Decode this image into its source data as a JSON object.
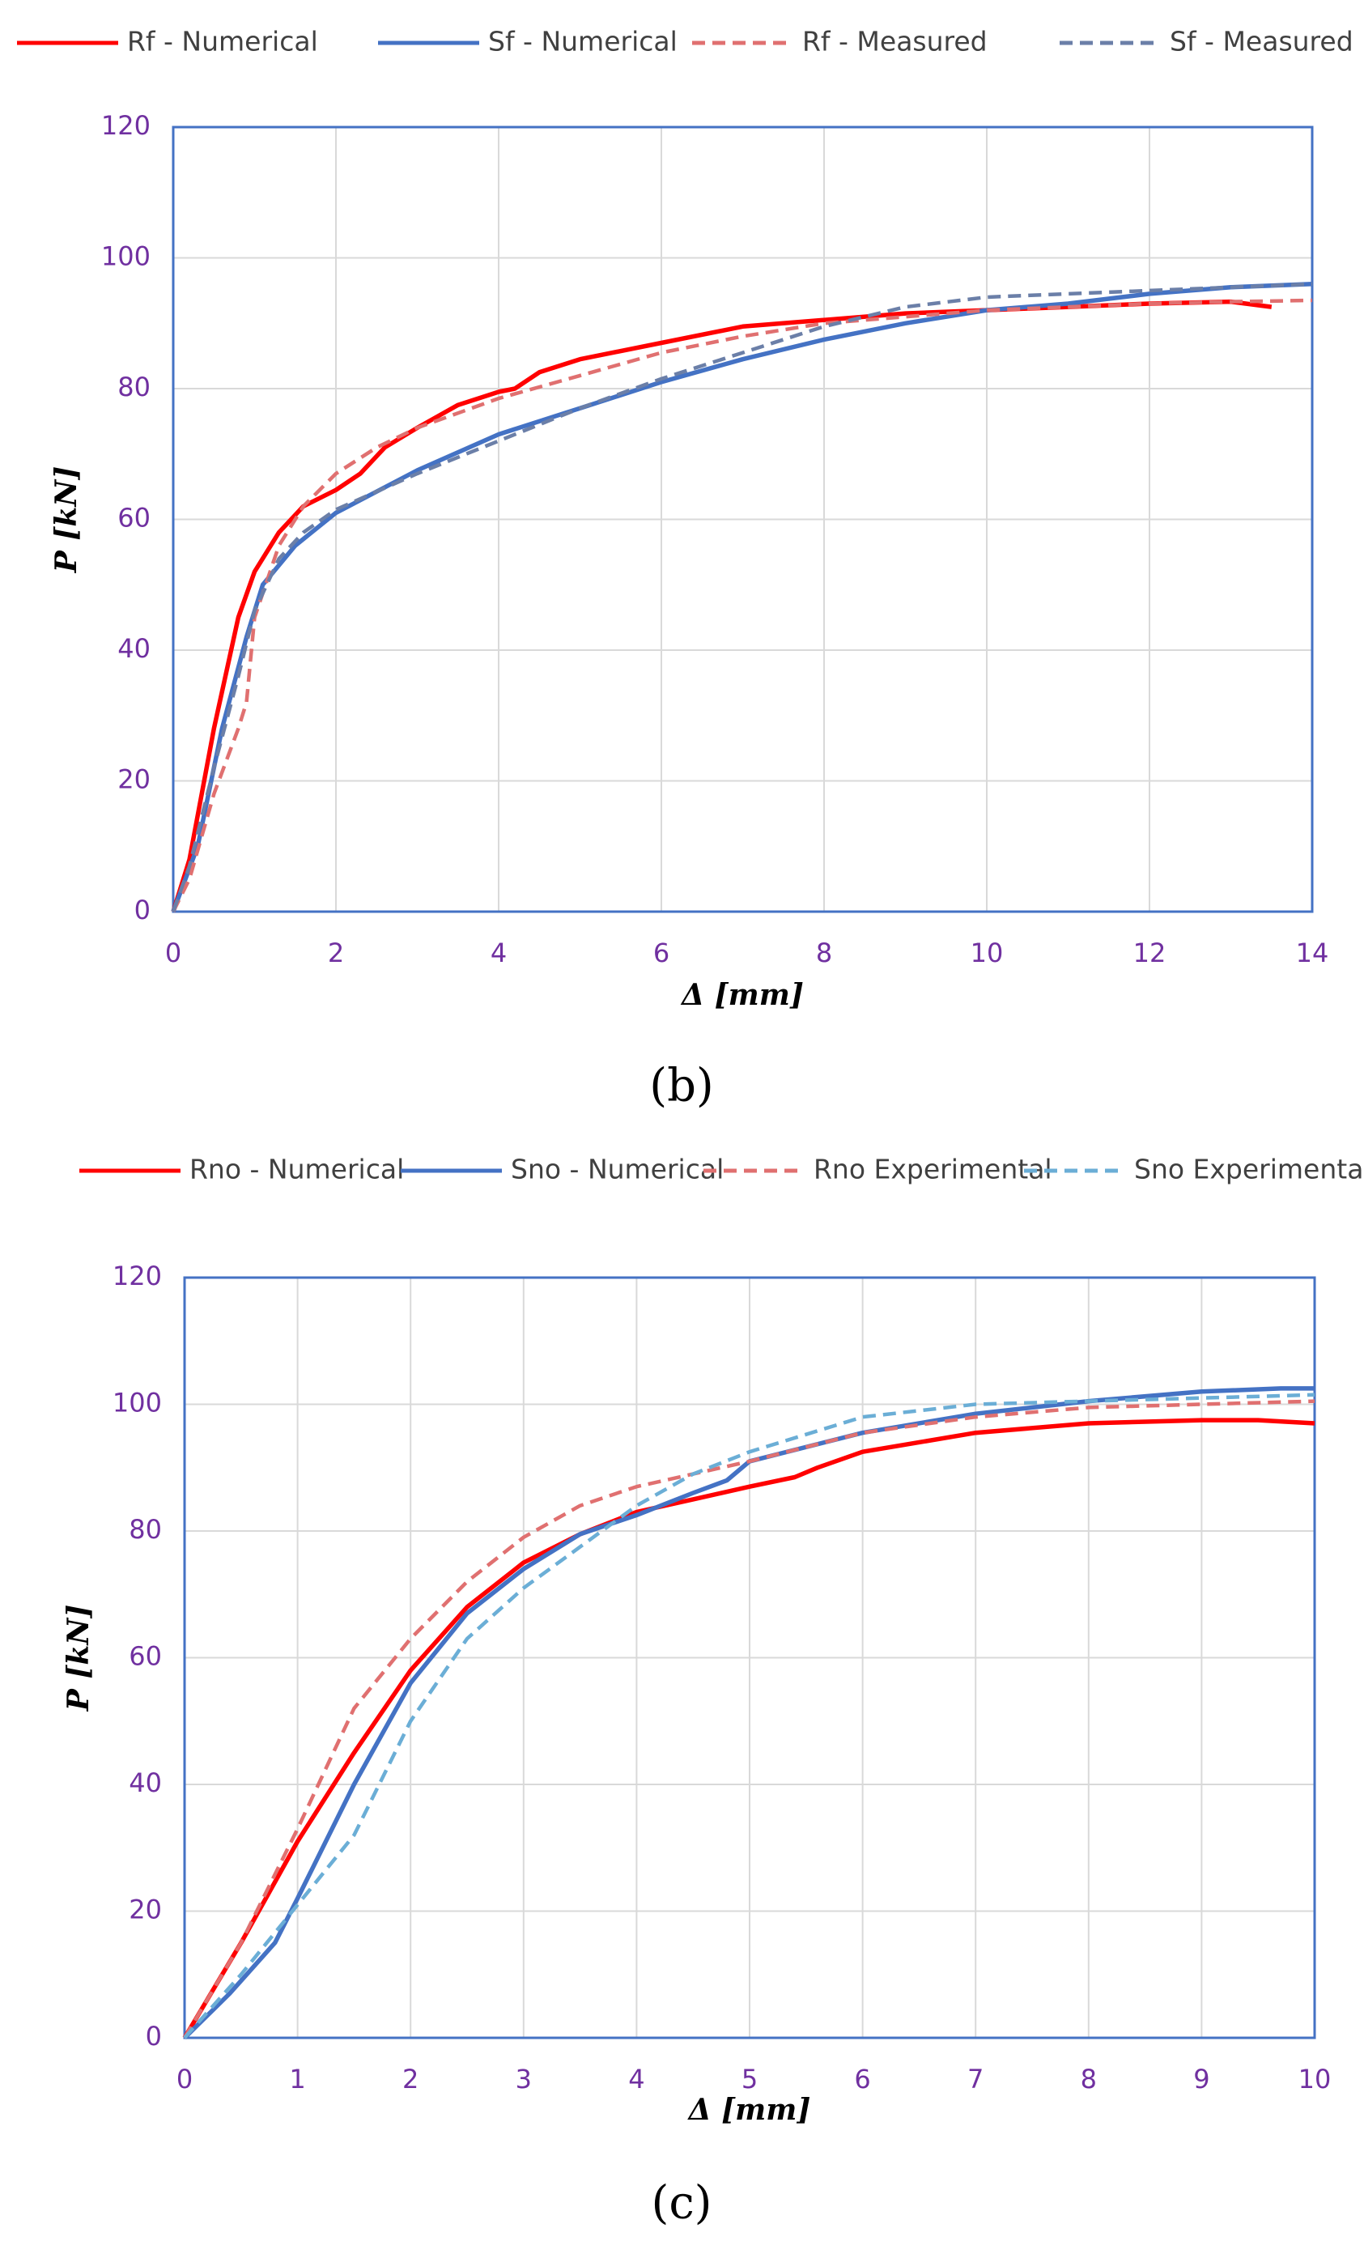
{
  "chart_data": [
    {
      "type": "line",
      "caption": "(b)",
      "x_label": "Δ [mm]",
      "y_label": "P [kN]",
      "grid": true,
      "xlim": [
        0,
        14
      ],
      "xticks": [
        0,
        2,
        4,
        6,
        8,
        10,
        12,
        14
      ],
      "ylim": [
        0,
        120
      ],
      "yticks": [
        0,
        20,
        40,
        60,
        80,
        100,
        120
      ],
      "series": [
        {
          "name": "Rf - Numerical",
          "color": "#ff0000",
          "dashed": false,
          "x": [
            0,
            0.2,
            0.5,
            0.8,
            1,
            1.3,
            1.6,
            2,
            2.3,
            2.6,
            3,
            3.5,
            4,
            4.2,
            4.5,
            5,
            6,
            7,
            8,
            9,
            10,
            11,
            12,
            13,
            13.5
          ],
          "values": [
            0,
            8,
            28,
            45,
            52,
            58,
            62,
            64.5,
            67,
            71,
            74,
            77.5,
            79.5,
            80,
            82.5,
            84.5,
            87,
            89.5,
            90.5,
            91.5,
            92,
            92.5,
            93,
            93.3,
            92.5
          ]
        },
        {
          "name": "Sf - Numerical",
          "color": "#4472c4",
          "dashed": false,
          "x": [
            0,
            0.3,
            0.6,
            0.9,
            1.1,
            1.5,
            2,
            3,
            4,
            5,
            6,
            7,
            8,
            9,
            10,
            11,
            12,
            13,
            14
          ],
          "values": [
            0,
            10,
            28,
            42,
            50,
            56,
            61,
            67.5,
            73,
            77,
            81,
            84.5,
            87.5,
            90,
            92,
            93,
            94.5,
            95.5,
            96
          ]
        },
        {
          "name": "Rf - Measured",
          "color": "#e07070",
          "dashed": true,
          "x": [
            0,
            0.2,
            0.5,
            0.8,
            0.9,
            1,
            1.3,
            1.6,
            2,
            2.5,
            3,
            4,
            5,
            6,
            7,
            8,
            9,
            10,
            11,
            12,
            13,
            14
          ],
          "values": [
            0,
            5,
            18,
            28,
            32,
            45,
            56,
            62,
            67,
            71,
            74,
            78.5,
            82,
            85.5,
            88,
            90,
            91,
            92,
            92.5,
            93,
            93.3,
            93.5
          ]
        },
        {
          "name": "Sf - Measured",
          "color": "#6b7fa8",
          "dashed": true,
          "x": [
            0,
            0.2,
            0.5,
            0.8,
            1,
            1.3,
            1.6,
            2,
            3,
            4,
            5,
            6,
            7,
            8,
            9,
            10,
            11,
            12,
            13,
            14
          ],
          "values": [
            0,
            7,
            22,
            36,
            46,
            54,
            58,
            61.5,
            67,
            72,
            77,
            81.5,
            85.5,
            89.5,
            92.5,
            94,
            94.5,
            95,
            95.5,
            96
          ]
        }
      ]
    },
    {
      "type": "line",
      "caption": "(c)",
      "x_label": "Δ [mm]",
      "y_label": "P [kN]",
      "grid": true,
      "xlim": [
        0,
        10
      ],
      "xticks": [
        0,
        1,
        2,
        3,
        4,
        5,
        6,
        7,
        8,
        9,
        10
      ],
      "ylim": [
        0,
        120
      ],
      "yticks": [
        0,
        20,
        40,
        60,
        80,
        100,
        120
      ],
      "series": [
        {
          "name": "Rno - Numerical",
          "color": "#ff0000",
          "dashed": false,
          "x": [
            0,
            0.5,
            1,
            1.5,
            2,
            2.5,
            3,
            3.5,
            4,
            4.5,
            5,
            5.4,
            5.6,
            6,
            7,
            8,
            9,
            9.5,
            10
          ],
          "values": [
            0,
            15,
            31,
            45,
            58,
            68,
            75,
            79.5,
            83,
            85,
            87,
            88.5,
            90,
            92.5,
            95.5,
            97,
            97.5,
            97.5,
            97
          ]
        },
        {
          "name": "Sno - Numerical",
          "color": "#4472c4",
          "dashed": false,
          "x": [
            0,
            0.4,
            0.8,
            1,
            1.5,
            2,
            2.5,
            3,
            3.5,
            4,
            4.5,
            4.8,
            5,
            6,
            7,
            8,
            9,
            9.7,
            10
          ],
          "values": [
            0,
            7,
            15,
            22,
            40,
            56,
            67,
            74,
            79.5,
            82.5,
            86,
            88,
            91,
            95.5,
            98.5,
            100.5,
            102,
            102.5,
            102.5
          ]
        },
        {
          "name": "Rno Experimental",
          "color": "#e07070",
          "dashed": true,
          "x": [
            0,
            0.5,
            1,
            1.5,
            2,
            2.5,
            3,
            3.5,
            4,
            4.5,
            5,
            6,
            7,
            8,
            9,
            10
          ],
          "values": [
            0,
            15,
            33,
            52,
            63,
            72,
            79,
            84,
            87,
            89,
            91,
            95.5,
            98,
            99.5,
            100,
            100.5
          ]
        },
        {
          "name": "Sno Experimental",
          "color": "#6baed6",
          "dashed": true,
          "x": [
            0,
            0.5,
            1,
            1.5,
            2,
            2.5,
            3,
            3.5,
            4,
            4.5,
            5,
            6,
            7,
            8,
            9,
            10
          ],
          "values": [
            0,
            10,
            21,
            32,
            50,
            63,
            71,
            77.5,
            84,
            89,
            92.5,
            98,
            100,
            100.5,
            101,
            101.5
          ]
        }
      ]
    }
  ]
}
